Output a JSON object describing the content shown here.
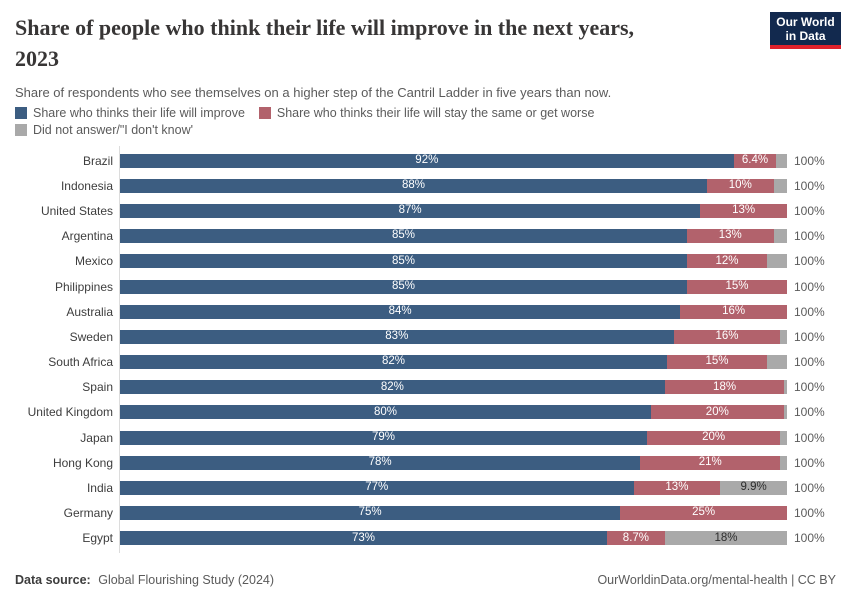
{
  "header": {
    "title_line1": "Share of people who think their life will improve in the next years,",
    "title_line2": "2023",
    "logo_line1": "Our World",
    "logo_line2": "in Data"
  },
  "subtitle": "Share of respondents who see themselves on a higher step of the Cantril Ladder in five years than now.",
  "colors": {
    "logo_navy": "#12294e",
    "logo_red": "#e0222c",
    "improve_blue": "#3c5d81",
    "worse_red": "#b2626c",
    "no_answer_gray": "#a9a9a9"
  },
  "chart_data": {
    "type": "bar",
    "orientation": "horizontal",
    "stacked": true,
    "unit": "%",
    "xlim": [
      0,
      100
    ],
    "grid": false,
    "legend_position": "top",
    "total_label": "100%",
    "categories": [
      "Brazil",
      "Indonesia",
      "United States",
      "Argentina",
      "Mexico",
      "Philippines",
      "Australia",
      "Sweden",
      "South Africa",
      "Spain",
      "United Kingdom",
      "Japan",
      "Hong Kong",
      "India",
      "Germany",
      "Egypt"
    ],
    "series": [
      {
        "name": "Share who thinks their life will improve",
        "color": "#3c5d81",
        "label_color": "#ffffff",
        "values": [
          92,
          88,
          87,
          85,
          85,
          85,
          84,
          83,
          82,
          82,
          80,
          79,
          78,
          77,
          75,
          73
        ],
        "labels": [
          "92%",
          "88%",
          "87%",
          "85%",
          "85%",
          "85%",
          "84%",
          "83%",
          "82%",
          "82%",
          "80%",
          "79%",
          "78%",
          "77%",
          "75%",
          "73%"
        ]
      },
      {
        "name": "Share who thinks their life will stay the same or get worse",
        "color": "#b2626c",
        "label_color": "#ffffff",
        "values": [
          6.4,
          10,
          13,
          13,
          12,
          15,
          16,
          16,
          15,
          18,
          20,
          20,
          21,
          13,
          25,
          8.7
        ],
        "labels": [
          "6.4%",
          "10%",
          "13%",
          "13%",
          "12%",
          "15%",
          "16%",
          "16%",
          "15%",
          "18%",
          "20%",
          "20%",
          "21%",
          "13%",
          "25%",
          "8.7%"
        ]
      },
      {
        "name": "Did not answer/\"I don't know'",
        "color": "#a9a9a9",
        "label_color": "#2d2d2d",
        "values": [
          1.6,
          2,
          0,
          2,
          3,
          0,
          0,
          1,
          3,
          0.4,
          0.5,
          1,
          1,
          9.9,
          0,
          18
        ],
        "labels": [
          "",
          "",
          "",
          "",
          "",
          "",
          "",
          "",
          "",
          "",
          "",
          "",
          "",
          "9.9%",
          "",
          "18%"
        ]
      }
    ]
  },
  "footer": {
    "source_label": "Data source:",
    "source_value": "Global Flourishing Study (2024)",
    "credit": "OurWorldinData.org/mental-health | CC BY"
  }
}
